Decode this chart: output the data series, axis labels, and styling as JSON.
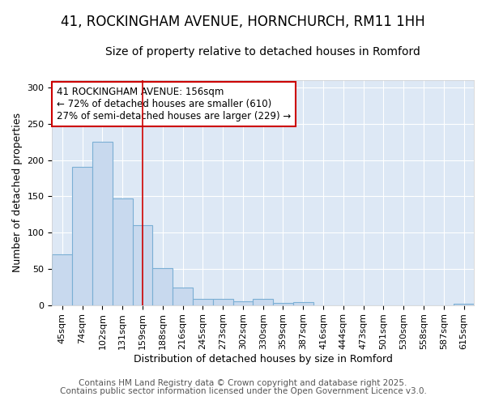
{
  "title_line1": "41, ROCKINGHAM AVENUE, HORNCHURCH, RM11 1HH",
  "title_line2": "Size of property relative to detached houses in Romford",
  "xlabel": "Distribution of detached houses by size in Romford",
  "ylabel": "Number of detached properties",
  "categories": [
    "45sqm",
    "74sqm",
    "102sqm",
    "131sqm",
    "159sqm",
    "188sqm",
    "216sqm",
    "245sqm",
    "273sqm",
    "302sqm",
    "330sqm",
    "359sqm",
    "387sqm",
    "416sqm",
    "444sqm",
    "473sqm",
    "501sqm",
    "530sqm",
    "558sqm",
    "587sqm",
    "615sqm"
  ],
  "values": [
    70,
    190,
    225,
    147,
    110,
    51,
    24,
    9,
    9,
    5,
    9,
    3,
    4,
    0,
    0,
    0,
    0,
    0,
    0,
    0,
    2
  ],
  "bar_color": "#c8d9ee",
  "bar_edgecolor": "#7bafd4",
  "vline_x": 4.0,
  "vline_color": "#cc0000",
  "annotation_text": "41 ROCKINGHAM AVENUE: 156sqm\n← 72% of detached houses are smaller (610)\n27% of semi-detached houses are larger (229) →",
  "annotation_box_color": "#ffffff",
  "annotation_box_edgecolor": "#cc0000",
  "ylim": [
    0,
    310
  ],
  "yticks": [
    0,
    50,
    100,
    150,
    200,
    250,
    300
  ],
  "footer_line1": "Contains HM Land Registry data © Crown copyright and database right 2025.",
  "footer_line2": "Contains public sector information licensed under the Open Government Licence v3.0.",
  "fig_background_color": "#ffffff",
  "plot_background_color": "#dde8f5",
  "title_fontsize": 12,
  "subtitle_fontsize": 10,
  "axis_label_fontsize": 9,
  "tick_fontsize": 8,
  "footer_fontsize": 7.5
}
